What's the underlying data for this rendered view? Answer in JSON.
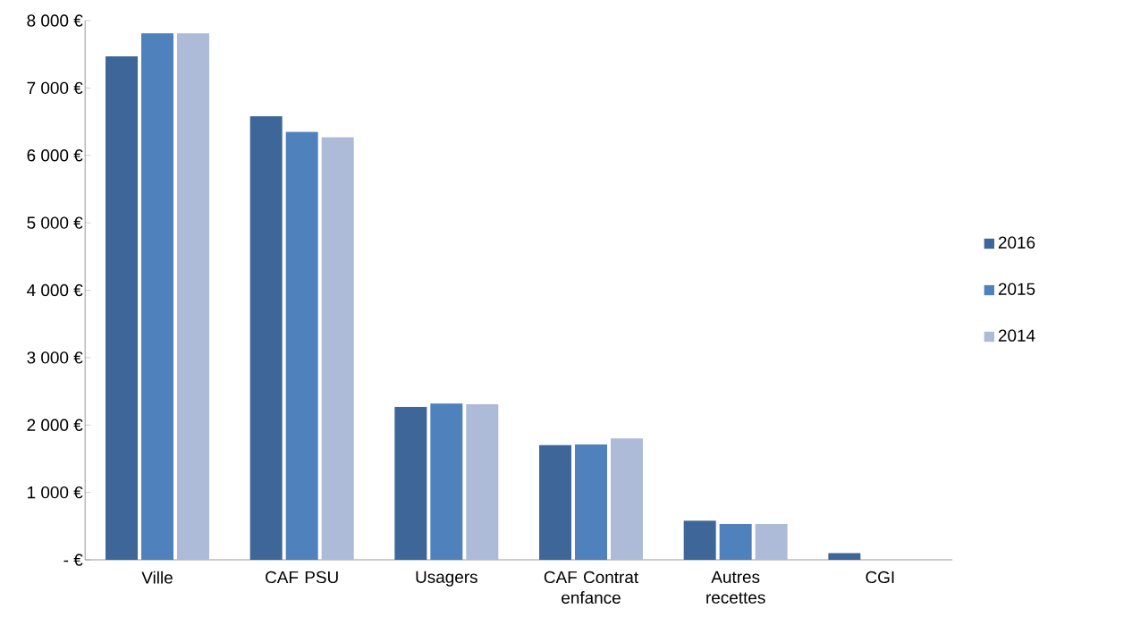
{
  "chart_data": {
    "type": "bar",
    "categories": [
      "Ville",
      "CAF PSU",
      "Usagers",
      "CAF Contrat enfance",
      "Autres recettes",
      "CGI"
    ],
    "series": [
      {
        "name": "2016",
        "color": "#3f6699",
        "values": [
          7470,
          6580,
          2270,
          1700,
          580,
          100
        ]
      },
      {
        "name": "2015",
        "color": "#4f81bd",
        "values": [
          7810,
          6350,
          2320,
          1710,
          530,
          0
        ]
      },
      {
        "name": "2014",
        "color": "#adbbd9",
        "values": [
          7810,
          6270,
          2310,
          1800,
          530,
          0
        ]
      }
    ],
    "ylim": [
      0,
      8000
    ],
    "yticks": [
      {
        "value": 0,
        "label": "-   €"
      },
      {
        "value": 1000,
        "label": "1 000 €"
      },
      {
        "value": 2000,
        "label": "2 000 €"
      },
      {
        "value": 3000,
        "label": "3 000 €"
      },
      {
        "value": 4000,
        "label": "4 000 €"
      },
      {
        "value": 5000,
        "label": "5 000 €"
      },
      {
        "value": 6000,
        "label": "6 000 €"
      },
      {
        "value": 7000,
        "label": "7 000 €"
      },
      {
        "value": 8000,
        "label": "8 000 €"
      }
    ],
    "grid": false,
    "legend": "right"
  }
}
